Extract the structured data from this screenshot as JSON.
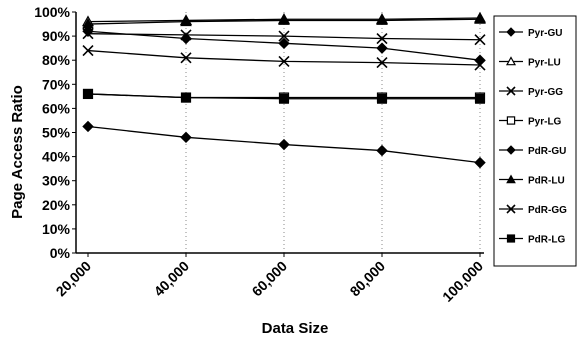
{
  "chart_data": {
    "type": "line",
    "title": "",
    "xlabel": "Data Size",
    "ylabel": "Page Access Ratio",
    "x": [
      20000,
      40000,
      60000,
      80000,
      100000
    ],
    "x_tick_labels": [
      "20,000",
      "40,000",
      "60,000",
      "80,000",
      "100,000"
    ],
    "ylim": [
      0,
      100
    ],
    "y_tick_labels": [
      "0%",
      "10%",
      "20%",
      "30%",
      "40%",
      "50%",
      "60%",
      "70%",
      "80%",
      "90%",
      "100%"
    ],
    "grid": "vertical dotted",
    "legend_position": "right",
    "series": [
      {
        "name": "Pyr-GU",
        "marker": "diamond-filled",
        "values": [
          92,
          89,
          87,
          85,
          80
        ]
      },
      {
        "name": "Pyr-LU",
        "marker": "triangle-open",
        "values": [
          96,
          96.5,
          97,
          97,
          97.5
        ]
      },
      {
        "name": "Pyr-GG",
        "marker": "x",
        "values": [
          84,
          81,
          79.5,
          79,
          78
        ]
      },
      {
        "name": "Pyr-LG",
        "marker": "square-open",
        "values": [
          66,
          64.5,
          64.5,
          64.5,
          64.5
        ]
      },
      {
        "name": "PdR-GU",
        "marker": "diamond-filled",
        "values": [
          52.5,
          48,
          45,
          42.5,
          37.5
        ]
      },
      {
        "name": "PdR-LU",
        "marker": "triangle-filled",
        "values": [
          95,
          96,
          96.5,
          96.5,
          97
        ]
      },
      {
        "name": "PdR-GG",
        "marker": "x",
        "values": [
          91,
          90.5,
          90,
          89,
          88.5
        ]
      },
      {
        "name": "PdR-LG",
        "marker": "square-filled",
        "values": [
          66,
          64.5,
          64,
          64,
          64
        ]
      }
    ]
  }
}
